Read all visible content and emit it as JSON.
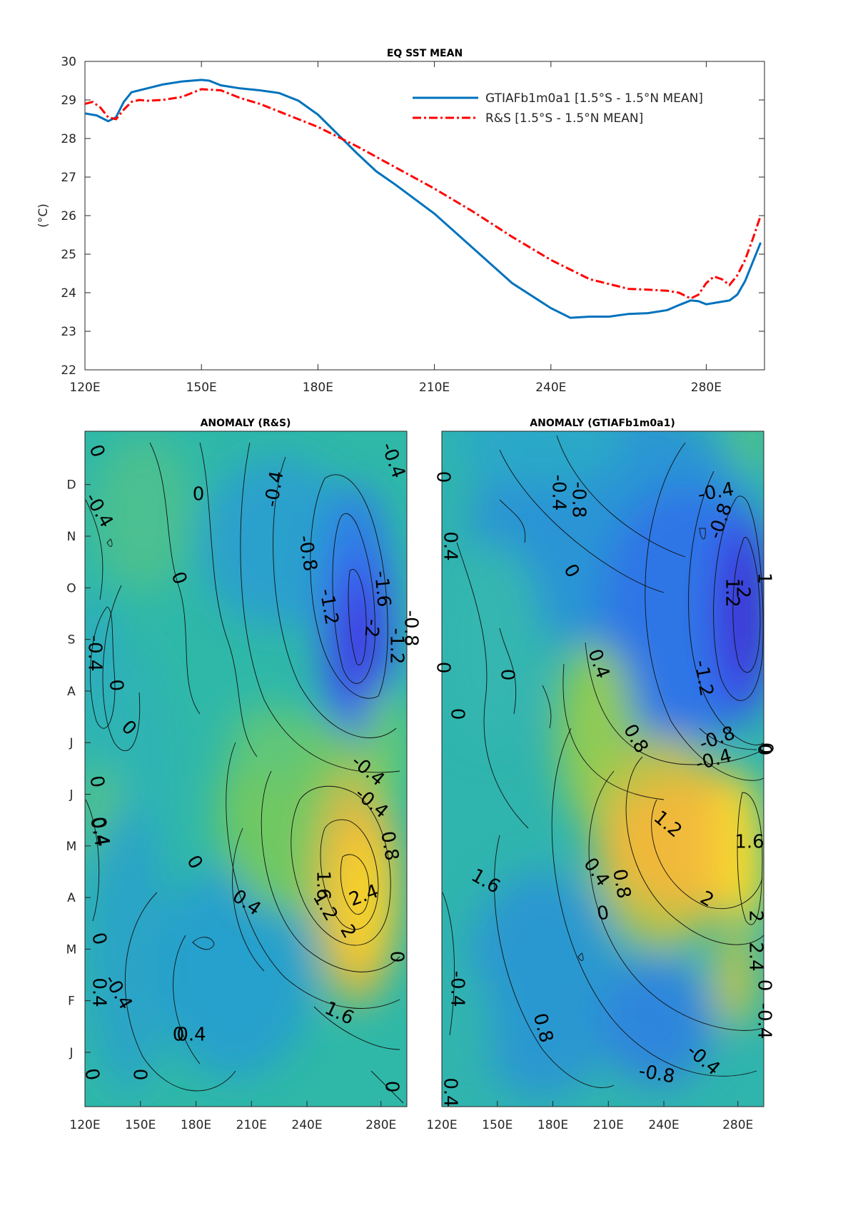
{
  "chart_data": [
    {
      "type": "line",
      "title": "EQ SST MEAN",
      "xlabel": "",
      "ylabel": "(°C)",
      "xlim": [
        120,
        295
      ],
      "ylim": [
        22,
        30
      ],
      "x_ticks": [
        120,
        150,
        180,
        210,
        240,
        280
      ],
      "x_tick_labels": [
        "120E",
        "150E",
        "180E",
        "210E",
        "240E",
        "280E"
      ],
      "y_ticks": [
        22,
        23,
        24,
        25,
        26,
        27,
        28,
        29,
        30
      ],
      "legend_position": "top-right",
      "series": [
        {
          "name": "GTIAFb1m0a1 [1.5°S - 1.5°N MEAN]",
          "color": "#0072BD",
          "style": "solid",
          "x": [
            120,
            123,
            126,
            128,
            130,
            132,
            134,
            136,
            140,
            145,
            150,
            152,
            155,
            160,
            165,
            170,
            175,
            180,
            185,
            190,
            195,
            200,
            210,
            220,
            230,
            240,
            245,
            250,
            255,
            260,
            265,
            270,
            273,
            276,
            278,
            280,
            283,
            286,
            288,
            290,
            292,
            294
          ],
          "y": [
            28.65,
            28.6,
            28.45,
            28.55,
            28.95,
            29.2,
            29.25,
            29.3,
            29.4,
            29.48,
            29.52,
            29.5,
            29.38,
            29.3,
            29.25,
            29.18,
            28.98,
            28.62,
            28.12,
            27.62,
            27.15,
            26.8,
            26.05,
            25.15,
            24.25,
            23.6,
            23.35,
            23.38,
            23.38,
            23.45,
            23.47,
            23.55,
            23.68,
            23.8,
            23.78,
            23.7,
            23.75,
            23.8,
            23.95,
            24.3,
            24.8,
            25.3
          ]
        },
        {
          "name": "R&S [1.5°S - 1.5°N MEAN]",
          "color": "#FF0000",
          "style": "dashdot",
          "x": [
            120,
            122,
            124,
            126,
            128,
            130,
            132,
            134,
            136,
            140,
            145,
            150,
            155,
            160,
            165,
            170,
            175,
            180,
            190,
            200,
            210,
            220,
            230,
            240,
            250,
            260,
            265,
            270,
            273,
            276,
            278,
            280,
            282,
            284,
            286,
            288,
            290,
            292,
            294
          ],
          "y": [
            28.9,
            28.95,
            28.8,
            28.55,
            28.5,
            28.75,
            28.95,
            29.0,
            28.98,
            29.0,
            29.08,
            29.28,
            29.25,
            29.05,
            28.9,
            28.7,
            28.5,
            28.3,
            27.8,
            27.25,
            26.7,
            26.1,
            25.45,
            24.85,
            24.35,
            24.1,
            24.08,
            24.05,
            24.0,
            23.85,
            23.95,
            24.25,
            24.42,
            24.35,
            24.2,
            24.45,
            24.85,
            25.4,
            26.0
          ]
        }
      ]
    },
    {
      "type": "heatmap",
      "title": "ANOMALY (R&S)",
      "xlim": [
        120,
        294
      ],
      "x_ticks": [
        120,
        150,
        180,
        210,
        240,
        280
      ],
      "x_tick_labels": [
        "120E",
        "150E",
        "180E",
        "210E",
        "240E",
        "280E"
      ],
      "y_ticks": [
        "J",
        "F",
        "M",
        "A",
        "M",
        "J",
        "J",
        "A",
        "S",
        "O",
        "N",
        "D"
      ],
      "colormap": "parula",
      "color_range": [
        -2.6,
        3.0
      ],
      "contour_labels": [
        "0",
        "-0.4",
        "-0.4",
        "0",
        "-0.4",
        "0",
        "-0.8",
        "-1.2",
        "-1.6",
        "-2",
        "-1.2",
        "-0.8",
        "0.4",
        "0",
        "0",
        "-0.4",
        "-0.4",
        "-0.4",
        "0.4",
        "0.8",
        "1.2",
        "1.6",
        "2",
        "2.4",
        "1.6",
        "0.4",
        "0.4",
        "0",
        "-0.4",
        "0",
        "0",
        "0",
        "0.4",
        "0",
        "0",
        "0",
        "0"
      ],
      "features": [
        {
          "kind": "cold anomaly",
          "lon": 260,
          "month": "S",
          "peak": -2.2
        },
        {
          "kind": "warm anomaly",
          "lon": 268,
          "month": "M",
          "peak": 2.8
        }
      ]
    },
    {
      "type": "heatmap",
      "title": "ANOMALY (GTIAFb1m0a1)",
      "xlim": [
        120,
        294
      ],
      "x_ticks": [
        120,
        150,
        180,
        210,
        240,
        280
      ],
      "x_tick_labels": [
        "120E",
        "150E",
        "180E",
        "210E",
        "240E",
        "280E"
      ],
      "colormap": "parula",
      "color_range": [
        -2.6,
        3.0
      ],
      "contour_labels": [
        "0",
        "-0.8",
        "-0.4",
        "-0.4",
        "-0.8",
        "0.4",
        "0",
        "-2",
        "1.2",
        "1",
        "-1.2",
        "0.4",
        "0",
        "0",
        "0",
        "0.8",
        "-0.8",
        "-0.4",
        "0",
        "1.2",
        "1.6",
        "0.4",
        "0.8",
        "0",
        "2",
        "2",
        "1.6",
        "2.4",
        "0",
        "0.8",
        "-0.4",
        "-0.4",
        "-0.8",
        "-0.4",
        "0.4",
        "0"
      ],
      "features": [
        {
          "kind": "cold anomaly",
          "lon": 285,
          "month": "S",
          "peak": -2.3
        },
        {
          "kind": "warm anomaly",
          "lon": 250,
          "month": "A",
          "peak": 2.6
        }
      ]
    }
  ]
}
